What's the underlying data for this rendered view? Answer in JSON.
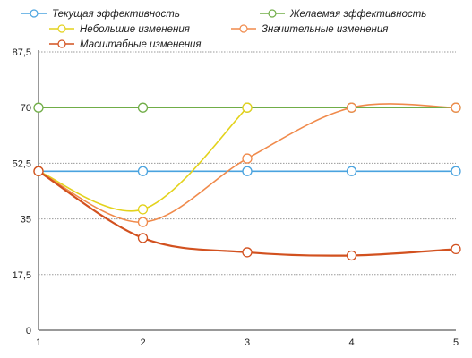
{
  "chart_data": {
    "type": "line",
    "title": "",
    "xlabel": "",
    "ylabel": "",
    "categories": [
      "1",
      "2",
      "3",
      "4",
      "5"
    ],
    "x": [
      1,
      2,
      3,
      4,
      5
    ],
    "ylim": [
      0,
      87.5
    ],
    "yticks": [
      0,
      17.5,
      35,
      52.5,
      70,
      87.5
    ],
    "ytick_labels": [
      "0",
      "17,5",
      "35",
      "52,5",
      "70",
      "87,5"
    ],
    "grid": true,
    "legend_position": "top",
    "series": [
      {
        "name": "Текущая эффективность",
        "color": "#4aa3df",
        "values": [
          50,
          50,
          50,
          50,
          50
        ]
      },
      {
        "name": "Желаемая эффективность",
        "color": "#70ad47",
        "values": [
          70,
          70,
          70,
          70,
          70
        ]
      },
      {
        "name": "Небольшие изменения",
        "color": "#e3d21c",
        "values": [
          50,
          38,
          70,
          null,
          null
        ]
      },
      {
        "name": "Значительные изменения",
        "color": "#f08a4b",
        "values": [
          50,
          34,
          54,
          70,
          70
        ]
      },
      {
        "name": "Масштабные изменения",
        "color": "#d2511f",
        "values": [
          50,
          29,
          24.5,
          23.5,
          25.5
        ]
      }
    ]
  }
}
